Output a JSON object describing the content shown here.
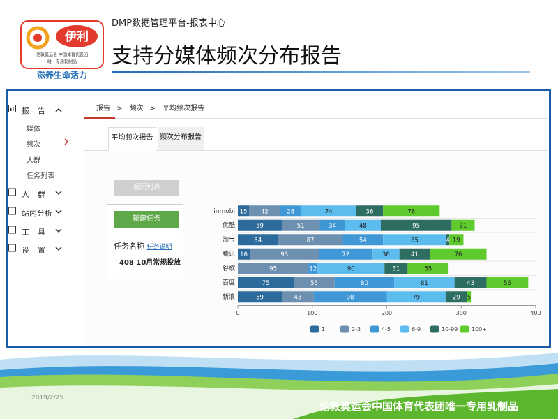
{
  "header": {
    "subtitle": "DMP数据管理平台-报表中心",
    "title": "支持分媒体频次分布报告"
  },
  "logo": {
    "brand": "伊利",
    "line1": "伦敦奥运会 中国体育代表团",
    "line2": "唯一专用乳制品",
    "slogan": "滋养生命活力"
  },
  "sidebar": {
    "report": "报告",
    "report_items": [
      "媒体",
      "频次",
      "人群",
      "任务列表"
    ],
    "menus": [
      "人群",
      "站内分析",
      "工具",
      "设置"
    ]
  },
  "breadcrumb": {
    "items": [
      "报告",
      "频次",
      "平均频次报告"
    ],
    "separator": ">"
  },
  "tabs": [
    "平均频次报告",
    "频次分布报告"
  ],
  "buttons": {
    "back": "返回列表",
    "new_task": "新建任务"
  },
  "task": {
    "name_label": "任务名称",
    "help_link": "任务说明",
    "name": "408 10月常规投放"
  },
  "chart_data": {
    "type": "bar",
    "orientation": "horizontal",
    "stacked": true,
    "categories": [
      "inmobi",
      "优酷",
      "淘宝",
      "腾讯",
      "谷歌",
      "百度",
      "新浪"
    ],
    "series": [
      {
        "name": "1",
        "color": "#2d6b9c",
        "values": [
          15,
          59,
          54,
          16,
          null,
          75,
          59
        ]
      },
      {
        "name": "2-3",
        "color": "#6d90b1",
        "values": [
          42,
          51,
          87,
          93,
          95,
          55,
          43
        ]
      },
      {
        "name": "4-5",
        "color": "#3f97d6",
        "values": [
          28,
          34,
          54,
          72,
          12,
          80,
          98
        ]
      },
      {
        "name": "6-9",
        "color": "#5dbcee",
        "values": [
          74,
          48,
          85,
          36,
          90,
          81,
          79
        ]
      },
      {
        "name": "10-99",
        "color": "#2e6d61",
        "values": [
          36,
          95,
          4,
          41,
          31,
          43,
          29
        ]
      },
      {
        "name": "100+",
        "color": "#5fca2d",
        "values": [
          76,
          31,
          19,
          76,
          55,
          56,
          5
        ]
      }
    ],
    "xlim": [
      0,
      400
    ],
    "xticks": [
      0,
      100,
      200,
      300,
      400
    ],
    "grid": false,
    "legend": "bottom"
  },
  "footer": {
    "date": "2019/2/25",
    "slogan": "伦敦奥运会中国体育代表团唯一专用乳制品"
  }
}
